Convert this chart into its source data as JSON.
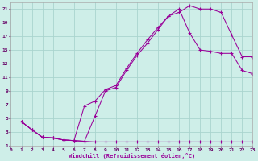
{
  "xlabel": "Windchill (Refroidissement éolien,°C)",
  "bg_color": "#ceeee8",
  "grid_color": "#aad4ce",
  "line_color": "#990099",
  "xlim": [
    0,
    23
  ],
  "ylim": [
    1,
    22
  ],
  "xticks": [
    0,
    1,
    2,
    3,
    4,
    5,
    6,
    7,
    8,
    9,
    10,
    11,
    12,
    13,
    14,
    15,
    16,
    17,
    18,
    19,
    20,
    21,
    22,
    23
  ],
  "yticks": [
    1,
    3,
    5,
    7,
    9,
    11,
    13,
    15,
    17,
    19,
    21
  ],
  "line1_x": [
    1,
    2,
    3,
    4,
    5,
    6,
    7,
    8,
    9,
    10,
    11,
    12,
    13,
    14,
    15,
    16,
    17,
    18,
    19,
    20,
    21,
    22,
    23
  ],
  "line1_y": [
    4.5,
    3.3,
    2.2,
    2.1,
    1.8,
    1.7,
    1.6,
    1.5,
    1.5,
    1.5,
    1.5,
    1.5,
    1.5,
    1.5,
    1.5,
    1.5,
    1.5,
    1.5,
    1.5,
    1.5,
    1.5,
    1.5,
    1.5
  ],
  "line2_x": [
    1,
    2,
    3,
    4,
    5,
    6,
    7,
    8,
    9,
    10,
    11,
    12,
    13,
    14,
    15,
    16,
    17,
    18,
    19,
    20,
    21,
    22,
    23
  ],
  "line2_y": [
    4.5,
    3.3,
    2.2,
    2.1,
    1.8,
    1.7,
    1.6,
    5.3,
    9.0,
    9.5,
    12.0,
    14.2,
    16.0,
    18.0,
    20.0,
    20.5,
    21.5,
    21.0,
    21.0,
    20.5,
    17.2,
    14.0,
    14.0
  ],
  "line3_x": [
    1,
    2,
    3,
    4,
    5,
    6,
    7,
    8,
    9,
    10,
    11,
    12,
    13,
    14,
    15,
    16,
    17,
    18,
    19,
    20,
    21,
    22,
    23
  ],
  "line3_y": [
    4.5,
    3.3,
    2.2,
    2.1,
    1.8,
    1.7,
    6.8,
    7.5,
    9.2,
    9.8,
    12.3,
    14.5,
    16.5,
    18.3,
    20.0,
    21.0,
    17.5,
    15.0,
    14.8,
    14.5,
    14.5,
    12.0,
    11.5
  ]
}
